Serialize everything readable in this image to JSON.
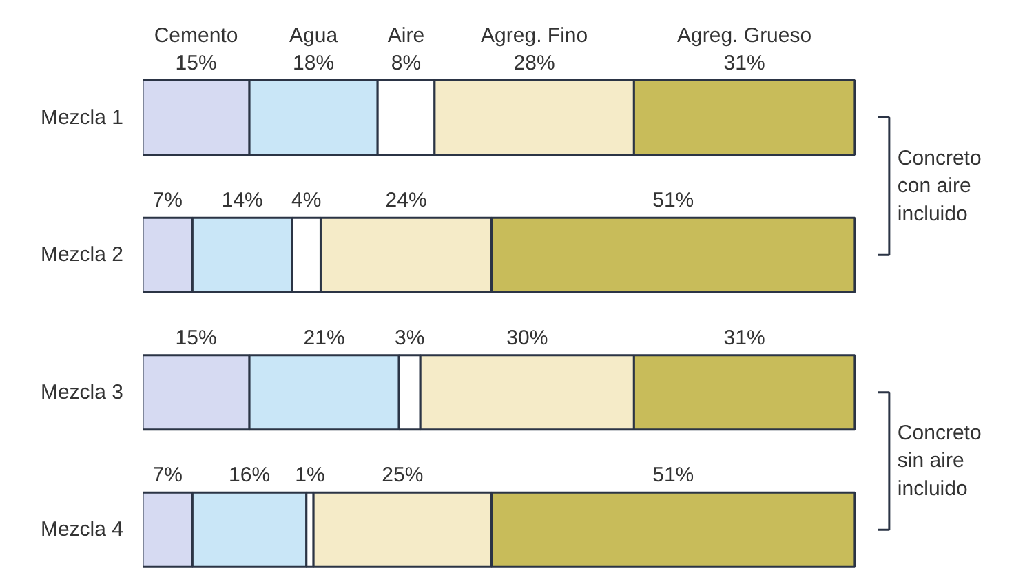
{
  "chart_data": {
    "type": "bar",
    "orientation": "horizontal",
    "stacked": true,
    "categories": [
      "Mezcla 1",
      "Mezcla 2",
      "Mezcla 3",
      "Mezcla 4"
    ],
    "series": [
      {
        "name": "Cemento",
        "color": "#d6daf2",
        "values": [
          15,
          7,
          15,
          7
        ],
        "value_labels": [
          "15%",
          "7%",
          "15%",
          "7%"
        ]
      },
      {
        "name": "Agua",
        "color": "#c9e6f7",
        "values": [
          18,
          14,
          21,
          16
        ],
        "value_labels": [
          "18%",
          "14%",
          "21%",
          "16%"
        ]
      },
      {
        "name": "Aire",
        "color": "#ffffff",
        "values": [
          8,
          4,
          3,
          1
        ],
        "value_labels": [
          "8%",
          "4%",
          "3%",
          "1%"
        ]
      },
      {
        "name": "Agreg. Fino",
        "color": "#f5ebc8",
        "values": [
          28,
          24,
          30,
          25
        ],
        "value_labels": [
          "28%",
          "24%",
          "30%",
          "25%"
        ]
      },
      {
        "name": "Agreg. Grueso",
        "color": "#c8bc5a",
        "values": [
          31,
          51,
          31,
          51
        ],
        "value_labels": [
          "31%",
          "51%",
          "31%",
          "51%"
        ]
      }
    ],
    "annotations": [
      "Concreto con aire incluido",
      "Concreto sin aire incluido"
    ]
  }
}
